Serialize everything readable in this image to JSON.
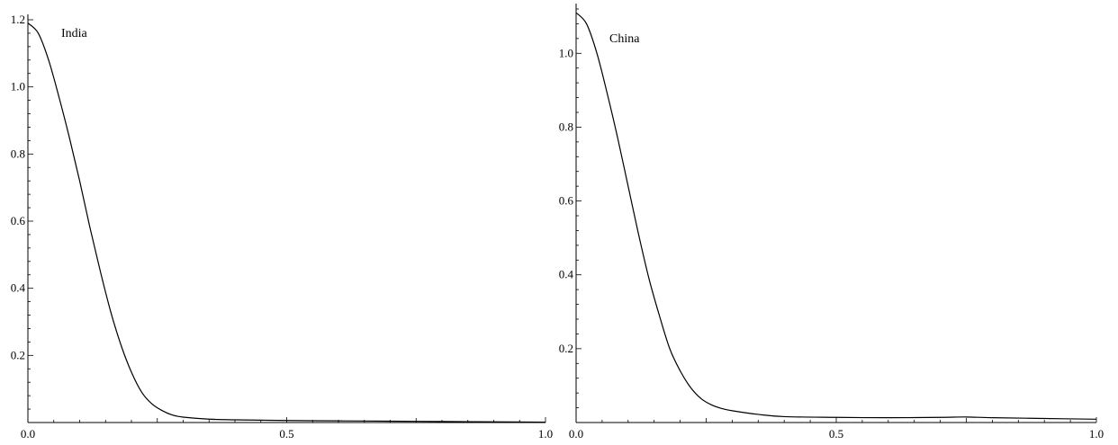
{
  "chart_data": [
    {
      "type": "line",
      "annotation": "India",
      "xlim": [
        0,
        1
      ],
      "ylim": [
        0,
        1.2
      ],
      "x_ticks": [
        "0.0",
        "0.5",
        "1.0"
      ],
      "y_ticks": [
        "0.2",
        "0.4",
        "0.6",
        "0.8",
        "1.0",
        "1.2"
      ],
      "grid": false,
      "series": [
        {
          "x": [
            0.0,
            0.02,
            0.04,
            0.06,
            0.08,
            0.1,
            0.12,
            0.14,
            0.16,
            0.18,
            0.2,
            0.22,
            0.24,
            0.26,
            0.28,
            0.3,
            0.35,
            0.4,
            0.5,
            0.6,
            0.7,
            0.8,
            0.9,
            1.0
          ],
          "y": [
            1.19,
            1.16,
            1.08,
            0.97,
            0.85,
            0.72,
            0.58,
            0.45,
            0.33,
            0.23,
            0.15,
            0.09,
            0.055,
            0.035,
            0.022,
            0.016,
            0.01,
            0.008,
            0.006,
            0.005,
            0.004,
            0.003,
            0.002,
            0.001
          ]
        }
      ]
    },
    {
      "type": "line",
      "annotation": "China",
      "xlim": [
        0,
        1
      ],
      "ylim": [
        0,
        1.12
      ],
      "x_ticks": [
        "0.0",
        "0.5",
        "1.0"
      ],
      "y_ticks": [
        "0.2",
        "0.4",
        "0.6",
        "0.8",
        "1.0"
      ],
      "grid": false,
      "series": [
        {
          "x": [
            0.0,
            0.02,
            0.04,
            0.06,
            0.08,
            0.1,
            0.12,
            0.14,
            0.16,
            0.18,
            0.2,
            0.22,
            0.24,
            0.26,
            0.28,
            0.3,
            0.35,
            0.4,
            0.5,
            0.6,
            0.7,
            0.75,
            0.8,
            0.9,
            1.0
          ],
          "y": [
            1.11,
            1.08,
            1.0,
            0.89,
            0.77,
            0.64,
            0.51,
            0.39,
            0.29,
            0.2,
            0.14,
            0.095,
            0.065,
            0.048,
            0.038,
            0.032,
            0.022,
            0.016,
            0.014,
            0.013,
            0.014,
            0.015,
            0.013,
            0.011,
            0.009
          ]
        }
      ]
    }
  ]
}
